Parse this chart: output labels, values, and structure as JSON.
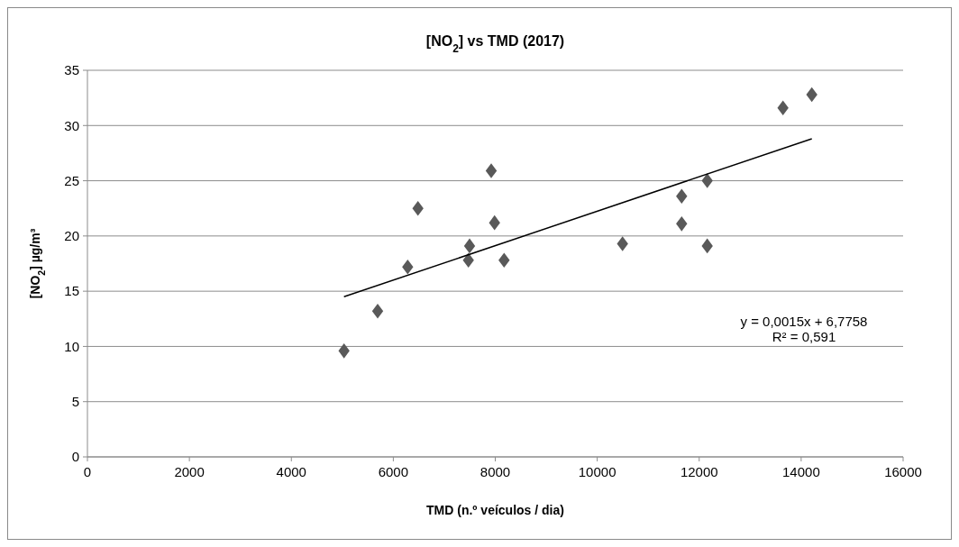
{
  "chart_data": {
    "type": "scatter",
    "title": "[NO$_{2}$]  vs TMD (2017)",
    "xlabel": "TMD (n.º veículos / dia)",
    "ylabel": "[NO$_{2}$] µg/m³",
    "xlim": [
      0,
      16000
    ],
    "xticks": [
      0,
      2000,
      4000,
      6000,
      8000,
      10000,
      12000,
      14000,
      16000
    ],
    "ylim": [
      0,
      35
    ],
    "yticks": [
      0,
      5,
      10,
      15,
      20,
      25,
      30,
      35
    ],
    "grid": "y",
    "marker": "diamond",
    "series": [
      {
        "color": "#595959",
        "x": [
          5033,
          5693,
          6282,
          6483,
          7921,
          7496,
          7473,
          7986,
          8173,
          10496,
          11656,
          11656,
          12158,
          12158,
          13643,
          14209
        ],
        "values": [
          9.6,
          13.2,
          17.2,
          22.5,
          25.9,
          19.1,
          17.8,
          21.2,
          17.8,
          19.3,
          23.6,
          21.1,
          25.0,
          19.1,
          31.6,
          32.8
        ]
      },
      {
        "type": "line",
        "color": "#000000",
        "marker": "none",
        "x": [
          5033,
          14209
        ],
        "values": [
          14.5,
          28.8
        ]
      }
    ],
    "annotations": [
      "y = 0,0015x + 6,7758",
      "R² = 0,591"
    ]
  }
}
